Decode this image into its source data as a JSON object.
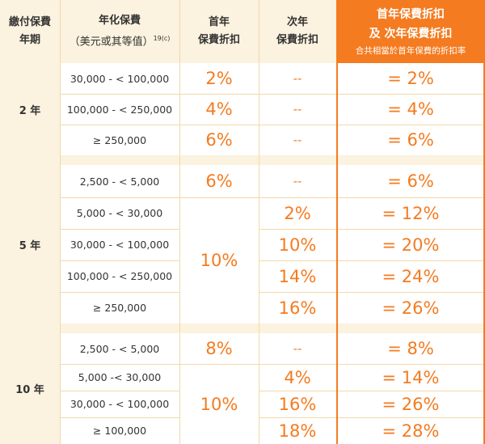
{
  "header": {
    "col1": [
      "繳付保費",
      "年期"
    ],
    "col2_line1": "年化保費",
    "col2_line2": "（美元或其等值）",
    "col2_sup": "19(c)",
    "col3": [
      "首年",
      "保費折扣"
    ],
    "col4": [
      "次年",
      "保費折扣"
    ],
    "col5_line1": "首年保費折扣",
    "col5_line2": "及 次年保費折扣",
    "col5_sub": "合共相當於首年保費的折扣率"
  },
  "groups": [
    {
      "term": "2 年",
      "rows": [
        {
          "range": "30,000 - < 100,000",
          "first": "2%",
          "second": "--",
          "total": "= 2%"
        },
        {
          "range": "100,000 - < 250,000",
          "first": "4%",
          "second": "--",
          "total": "= 4%"
        },
        {
          "range": "≥ 250,000",
          "first": "6%",
          "second": "--",
          "total": "= 6%"
        }
      ]
    },
    {
      "term": "5 年",
      "first_merged": "10%",
      "rows": [
        {
          "range": "2,500 - < 5,000",
          "first": "6%",
          "second": "--",
          "total": "= 6%"
        },
        {
          "range": "5,000 - < 30,000",
          "second": "2%",
          "total": "= 12%"
        },
        {
          "range": "30,000 - < 100,000",
          "second": "10%",
          "total": "= 20%"
        },
        {
          "range": "100,000 - < 250,000",
          "second": "14%",
          "total": "= 24%"
        },
        {
          "range": "≥ 250,000",
          "second": "16%",
          "total": "= 26%"
        }
      ]
    },
    {
      "term": "10 年",
      "first_merged": "10%",
      "rows": [
        {
          "range": "2,500 - < 5,000",
          "first": "8%",
          "second": "--",
          "total": "= 8%"
        },
        {
          "range": "5,000 -< 30,000",
          "second": "4%",
          "total": "= 14%"
        },
        {
          "range": "30,000 - < 100,000",
          "second": "16%",
          "total": "= 26%"
        },
        {
          "range": "≥ 100,000",
          "second": "18%",
          "total": "= 28%"
        }
      ]
    }
  ],
  "colors": {
    "accent": "#f47b20",
    "cream": "#fbf2df",
    "line": "#f3d9a8"
  }
}
